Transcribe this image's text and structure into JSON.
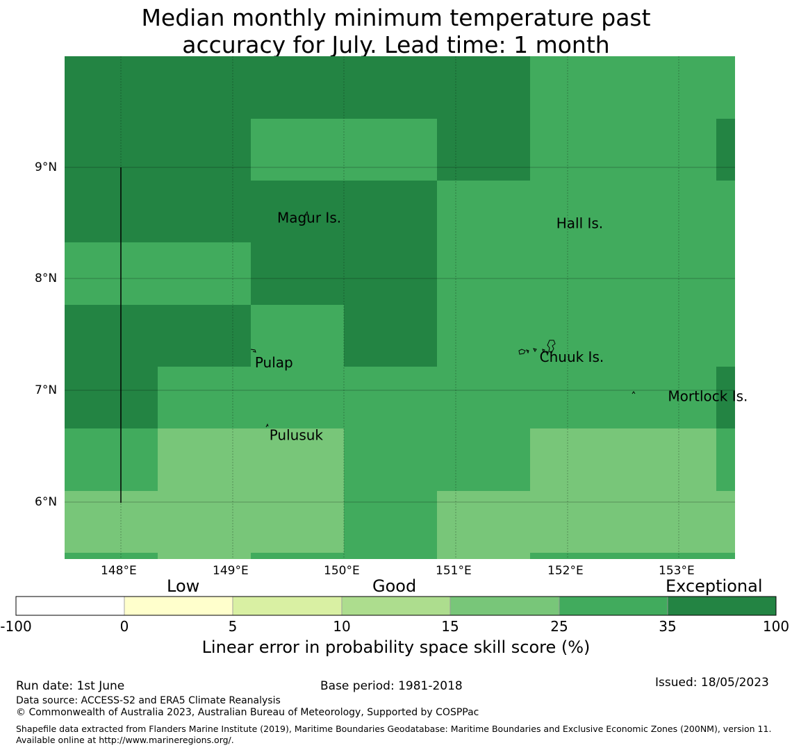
{
  "title": {
    "line1": "Median monthly minimum temperature past",
    "line2": "accuracy for July. Lead time: 1 month"
  },
  "map": {
    "lon_ticks": [
      "148°E",
      "149°E",
      "150°E",
      "151°E",
      "152°E",
      "153°E"
    ],
    "lat_ticks": [
      "9°N",
      "8°N",
      "7°N",
      "6°N"
    ],
    "places": [
      {
        "name": "Magur Is.",
        "lon": 149.4,
        "lat": 8.55
      },
      {
        "name": "Hall Is.",
        "lon": 151.9,
        "lat": 8.5
      },
      {
        "name": "Pulap",
        "lon": 149.2,
        "lat": 7.25
      },
      {
        "name": "Chuuk Is.",
        "lon": 151.75,
        "lat": 7.3
      },
      {
        "name": "Mortlock Is.",
        "lon": 152.9,
        "lat": 6.95
      },
      {
        "name": "Pulusuk",
        "lon": 149.33,
        "lat": 6.6
      }
    ],
    "skill_classes": {
      "mid": "#41ab5d",
      "exceptional": "#238443",
      "light": "#78c679"
    }
  },
  "colorbar": {
    "categories": [
      "Low",
      "Good",
      "Exceptional"
    ],
    "ticks": [
      "-100",
      "0",
      "5",
      "10",
      "15",
      "25",
      "35",
      "100"
    ],
    "colors": [
      "#ffffff",
      "#ffffcc",
      "#d9f0a3",
      "#addd8e",
      "#78c679",
      "#41ab5d",
      "#238443"
    ],
    "label": "Linear error in probability space skill score (%)"
  },
  "footer": {
    "run_date": "Run date: 1st June",
    "base_period": "Base period: 1981-2018",
    "issued": "Issued: 18/05/2023",
    "data_source": "Data source: ACCESS-S2 and ERA5 Climate Reanalysis",
    "copyright": "© Commonwealth of Australia 2023, Australian Bureau of Meteorology, Supported by COSPPac",
    "shapefile": "Shapefile data extracted from Flanders Marine Institute (2019), Maritime Boundaries Geodatabase: Maritime Boundaries and Exclusive Economic Zones (200NM), version 11. Available online at http://www.marineregions.org/."
  }
}
